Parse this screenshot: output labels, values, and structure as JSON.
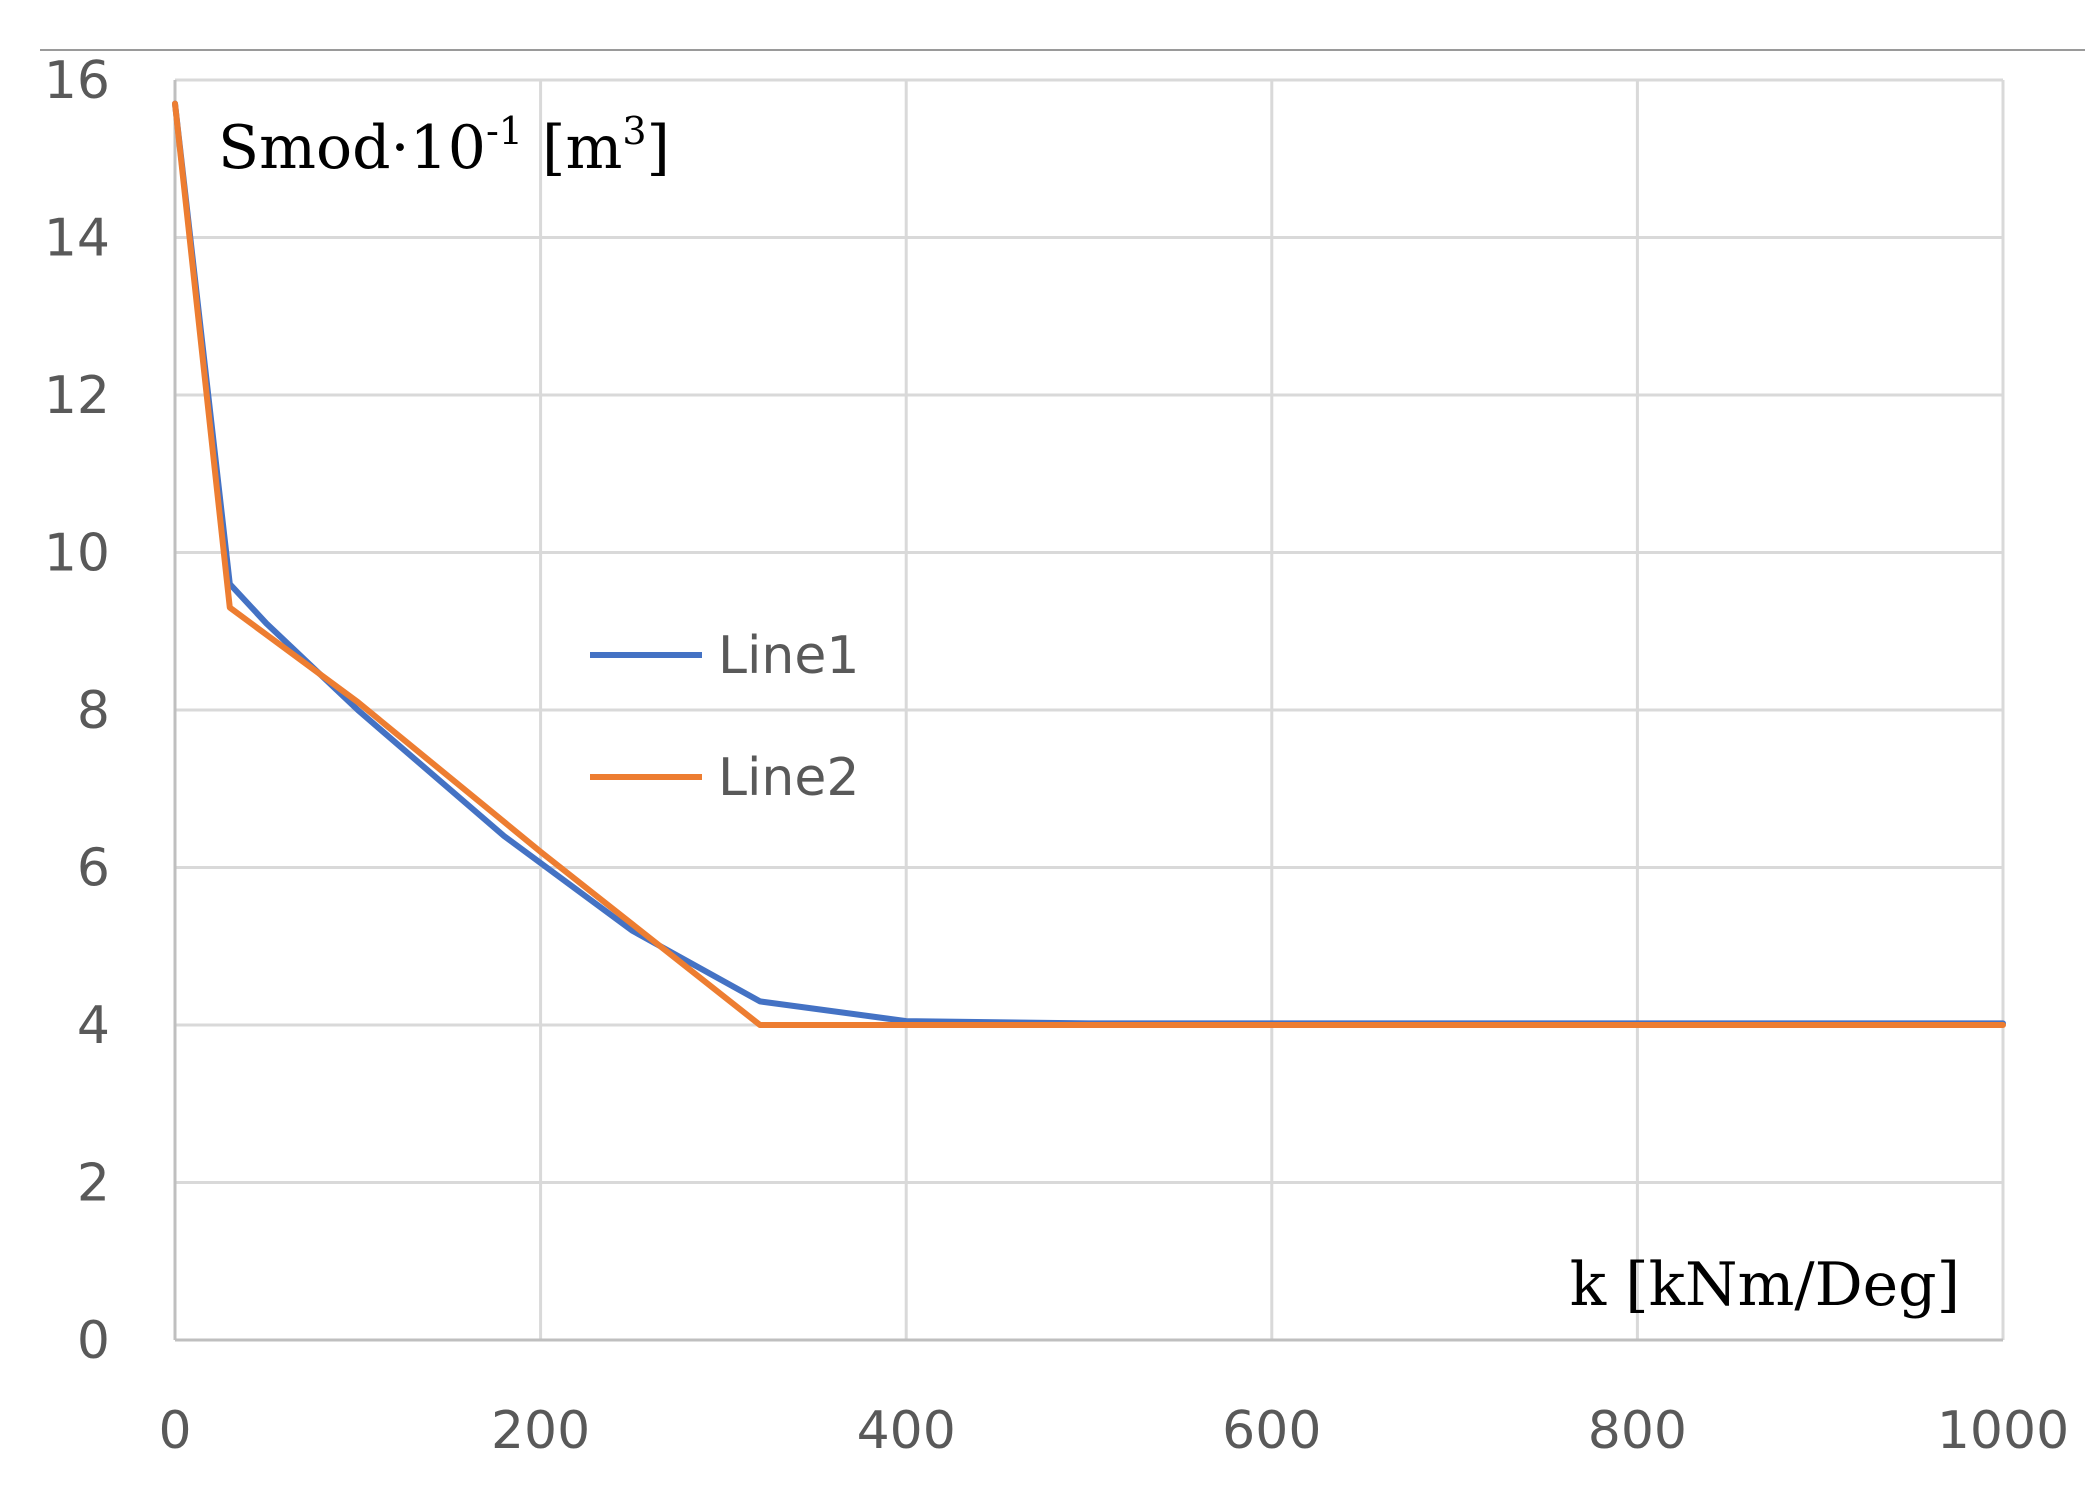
{
  "chart_data": {
    "type": "line",
    "title": "",
    "xlabel": "k [kNm/Deg]",
    "ylabel_parts": {
      "base": "Smod·10",
      "exp": "-1",
      "unit_open": " [m",
      "unit_exp": "3",
      "unit_close": "]"
    },
    "xlim": [
      0,
      1000
    ],
    "ylim": [
      0,
      16
    ],
    "xticks": [
      0,
      200,
      400,
      600,
      800,
      1000
    ],
    "yticks": [
      0,
      2,
      4,
      6,
      8,
      10,
      12,
      14,
      16
    ],
    "grid": true,
    "legend_position": "center-left",
    "series": [
      {
        "name": "Line1",
        "color": "#4472C4",
        "x": [
          0,
          30,
          50,
          100,
          180,
          250,
          320,
          400,
          500,
          1000
        ],
        "y": [
          15.7,
          9.6,
          9.1,
          8.0,
          6.4,
          5.2,
          4.3,
          4.05,
          4.02,
          4.02
        ]
      },
      {
        "name": "Line2",
        "color": "#ED7D31",
        "x": [
          0,
          30,
          100,
          200,
          320,
          400,
          1000
        ],
        "y": [
          15.7,
          9.3,
          8.1,
          6.2,
          4.0,
          4.0,
          4.0
        ]
      }
    ]
  }
}
